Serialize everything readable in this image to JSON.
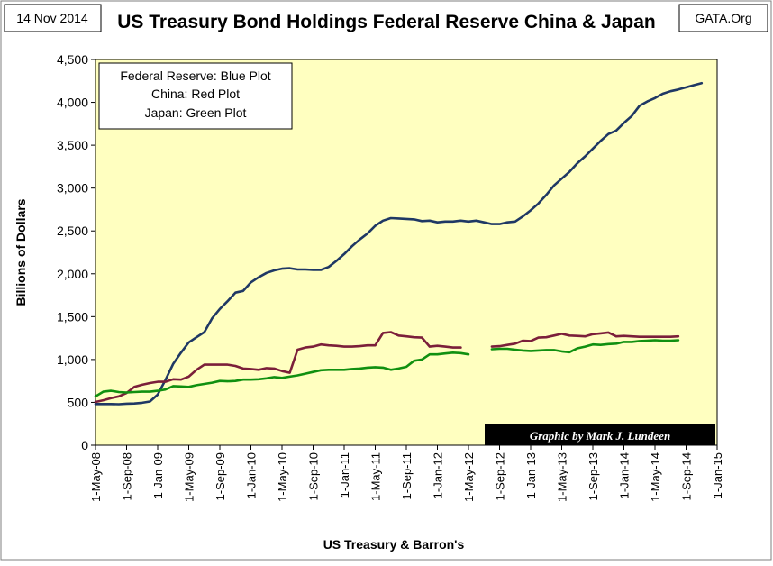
{
  "header": {
    "date_label": "14 Nov 2014",
    "title": "US Treasury Bond Holdings Federal Reserve China & Japan",
    "source_label": "GATA.Org"
  },
  "legend": {
    "lines": [
      "Federal Reserve: Blue Plot",
      "China: Red Plot",
      "Japan: Green Plot"
    ]
  },
  "credit": "Graphic by Mark J. Lundeen",
  "colors": {
    "plot_background": "#ffffc0",
    "federal_reserve": "#1f3864",
    "china": "#7b1f3a",
    "japan": "#109010",
    "credit_background": "#000000",
    "credit_text": "#ffffff"
  },
  "chart_data": {
    "type": "line",
    "title": "US Treasury Bond Holdings Federal Reserve China & Japan",
    "xlabel": "US Treasury & Barron's",
    "ylabel": "Billions of Dollars",
    "ylim": [
      0,
      4500
    ],
    "yticks": [
      0,
      500,
      1000,
      1500,
      2000,
      2500,
      3000,
      3500,
      4000,
      4500
    ],
    "ytick_labels": [
      "0",
      "500",
      "1,000",
      "1,500",
      "2,000",
      "2,500",
      "3,000",
      "3,500",
      "4,000",
      "4,500"
    ],
    "x_start": "2008-05",
    "x_end": "2015-01",
    "xticks": [
      "2008-05",
      "2008-09",
      "2009-01",
      "2009-05",
      "2009-09",
      "2010-01",
      "2010-05",
      "2010-09",
      "2011-01",
      "2011-05",
      "2011-09",
      "2012-01",
      "2012-05",
      "2012-09",
      "2013-01",
      "2013-05",
      "2013-09",
      "2014-01",
      "2014-05",
      "2014-09",
      "2015-01"
    ],
    "xtick_labels": [
      "1-May-08",
      "1-Sep-08",
      "1-Jan-09",
      "1-May-09",
      "1-Sep-09",
      "1-Jan-10",
      "1-May-10",
      "1-Sep-10",
      "1-Jan-11",
      "1-May-11",
      "1-Sep-11",
      "1-Jan-12",
      "1-May-12",
      "1-Sep-12",
      "1-Jan-13",
      "1-May-13",
      "1-Sep-13",
      "1-Jan-14",
      "1-May-14",
      "1-Sep-14",
      "1-Jan-15"
    ],
    "grid": false,
    "legend_position": "top-left",
    "series": [
      {
        "name": "Federal Reserve",
        "color": "#1f3864",
        "points": [
          [
            "2008-05",
            480
          ],
          [
            "2008-06",
            480
          ],
          [
            "2008-07",
            480
          ],
          [
            "2008-08",
            478
          ],
          [
            "2008-09",
            485
          ],
          [
            "2008-10",
            487
          ],
          [
            "2008-11",
            495
          ],
          [
            "2008-12",
            510
          ],
          [
            "2009-01",
            590
          ],
          [
            "2009-02",
            760
          ],
          [
            "2009-03",
            950
          ],
          [
            "2009-04",
            1080
          ],
          [
            "2009-05",
            1200
          ],
          [
            "2009-06",
            1260
          ],
          [
            "2009-07",
            1320
          ],
          [
            "2009-08",
            1480
          ],
          [
            "2009-09",
            1590
          ],
          [
            "2009-10",
            1680
          ],
          [
            "2009-11",
            1780
          ],
          [
            "2009-12",
            1800
          ],
          [
            "2010-01",
            1900
          ],
          [
            "2010-02",
            1960
          ],
          [
            "2010-03",
            2010
          ],
          [
            "2010-04",
            2040
          ],
          [
            "2010-05",
            2060
          ],
          [
            "2010-06",
            2065
          ],
          [
            "2010-07",
            2050
          ],
          [
            "2010-08",
            2050
          ],
          [
            "2010-09",
            2045
          ],
          [
            "2010-10",
            2045
          ],
          [
            "2010-11",
            2080
          ],
          [
            "2010-12",
            2150
          ],
          [
            "2011-01",
            2230
          ],
          [
            "2011-02",
            2320
          ],
          [
            "2011-03",
            2400
          ],
          [
            "2011-04",
            2470
          ],
          [
            "2011-05",
            2560
          ],
          [
            "2011-06",
            2620
          ],
          [
            "2011-07",
            2650
          ],
          [
            "2011-08",
            2645
          ],
          [
            "2011-09",
            2640
          ],
          [
            "2011-10",
            2635
          ],
          [
            "2011-11",
            2615
          ],
          [
            "2011-12",
            2620
          ],
          [
            "2012-01",
            2600
          ],
          [
            "2012-02",
            2610
          ],
          [
            "2012-03",
            2610
          ],
          [
            "2012-04",
            2620
          ],
          [
            "2012-05",
            2610
          ],
          [
            "2012-06",
            2620
          ],
          [
            "2012-07",
            2600
          ],
          [
            "2012-08",
            2580
          ],
          [
            "2012-09",
            2580
          ],
          [
            "2012-10",
            2600
          ],
          [
            "2012-11",
            2610
          ],
          [
            "2012-12",
            2670
          ],
          [
            "2013-01",
            2740
          ],
          [
            "2013-02",
            2820
          ],
          [
            "2013-03",
            2920
          ],
          [
            "2013-04",
            3030
          ],
          [
            "2013-05",
            3110
          ],
          [
            "2013-06",
            3190
          ],
          [
            "2013-07",
            3290
          ],
          [
            "2013-08",
            3370
          ],
          [
            "2013-09",
            3460
          ],
          [
            "2013-10",
            3550
          ],
          [
            "2013-11",
            3630
          ],
          [
            "2013-12",
            3670
          ],
          [
            "2014-01",
            3760
          ],
          [
            "2014-02",
            3840
          ],
          [
            "2014-03",
            3960
          ],
          [
            "2014-04",
            4010
          ],
          [
            "2014-05",
            4050
          ],
          [
            "2014-06",
            4100
          ],
          [
            "2014-07",
            4130
          ],
          [
            "2014-08",
            4150
          ],
          [
            "2014-09",
            4175
          ],
          [
            "2014-10",
            4200
          ],
          [
            "2014-11",
            4225
          ]
        ]
      },
      {
        "name": "China",
        "color": "#7b1f3a",
        "points": [
          [
            "2008-05",
            505
          ],
          [
            "2008-06",
            525
          ],
          [
            "2008-07",
            550
          ],
          [
            "2008-08",
            570
          ],
          [
            "2008-09",
            610
          ],
          [
            "2008-10",
            680
          ],
          [
            "2008-11",
            705
          ],
          [
            "2008-12",
            725
          ],
          [
            "2009-01",
            740
          ],
          [
            "2009-02",
            740
          ],
          [
            "2009-03",
            770
          ],
          [
            "2009-04",
            765
          ],
          [
            "2009-05",
            800
          ],
          [
            "2009-06",
            880
          ],
          [
            "2009-07",
            940
          ],
          [
            "2009-08",
            940
          ],
          [
            "2009-09",
            940
          ],
          [
            "2009-10",
            940
          ],
          [
            "2009-11",
            925
          ],
          [
            "2009-12",
            895
          ],
          [
            "2010-01",
            890
          ],
          [
            "2010-02",
            880
          ],
          [
            "2010-03",
            900
          ],
          [
            "2010-04",
            895
          ],
          [
            "2010-05",
            865
          ],
          [
            "2010-06",
            845
          ],
          [
            "2010-07",
            1115
          ],
          [
            "2010-08",
            1140
          ],
          [
            "2010-09",
            1150
          ],
          [
            "2010-10",
            1175
          ],
          [
            "2010-11",
            1165
          ],
          [
            "2010-12",
            1160
          ],
          [
            "2011-01",
            1150
          ],
          [
            "2011-02",
            1150
          ],
          [
            "2011-03",
            1155
          ],
          [
            "2011-04",
            1165
          ],
          [
            "2011-05",
            1165
          ],
          [
            "2011-06",
            1310
          ],
          [
            "2011-07",
            1320
          ],
          [
            "2011-08",
            1280
          ],
          [
            "2011-09",
            1270
          ],
          [
            "2011-10",
            1260
          ],
          [
            "2011-11",
            1255
          ],
          [
            "2011-12",
            1150
          ],
          [
            "2012-01",
            1160
          ],
          [
            "2012-02",
            1150
          ],
          [
            "2012-03",
            1140
          ],
          [
            "2012-04",
            1140
          ],
          null,
          [
            "2012-08",
            1150
          ],
          [
            "2012-09",
            1155
          ],
          [
            "2012-10",
            1170
          ],
          [
            "2012-11",
            1185
          ],
          [
            "2012-12",
            1220
          ],
          [
            "2013-01",
            1215
          ],
          [
            "2013-02",
            1255
          ],
          [
            "2013-03",
            1260
          ],
          [
            "2013-04",
            1280
          ],
          [
            "2013-05",
            1300
          ],
          [
            "2013-06",
            1280
          ],
          [
            "2013-07",
            1275
          ],
          [
            "2013-08",
            1270
          ],
          [
            "2013-09",
            1295
          ],
          [
            "2013-10",
            1305
          ],
          [
            "2013-11",
            1315
          ],
          [
            "2013-12",
            1270
          ],
          [
            "2014-01",
            1275
          ],
          [
            "2014-02",
            1270
          ],
          [
            "2014-03",
            1265
          ],
          [
            "2014-04",
            1265
          ],
          [
            "2014-05",
            1265
          ],
          [
            "2014-06",
            1265
          ],
          [
            "2014-07",
            1265
          ],
          [
            "2014-08",
            1270
          ]
        ]
      },
      {
        "name": "Japan",
        "color": "#109010",
        "points": [
          [
            "2008-05",
            570
          ],
          [
            "2008-06",
            625
          ],
          [
            "2008-07",
            635
          ],
          [
            "2008-08",
            620
          ],
          [
            "2008-09",
            615
          ],
          [
            "2008-10",
            620
          ],
          [
            "2008-11",
            625
          ],
          [
            "2008-12",
            625
          ],
          [
            "2009-01",
            635
          ],
          [
            "2009-02",
            650
          ],
          [
            "2009-03",
            690
          ],
          [
            "2009-04",
            685
          ],
          [
            "2009-05",
            680
          ],
          [
            "2009-06",
            700
          ],
          [
            "2009-07",
            715
          ],
          [
            "2009-08",
            730
          ],
          [
            "2009-09",
            750
          ],
          [
            "2009-10",
            745
          ],
          [
            "2009-11",
            750
          ],
          [
            "2009-12",
            765
          ],
          [
            "2010-01",
            765
          ],
          [
            "2010-02",
            770
          ],
          [
            "2010-03",
            780
          ],
          [
            "2010-04",
            795
          ],
          [
            "2010-05",
            785
          ],
          [
            "2010-06",
            800
          ],
          [
            "2010-07",
            815
          ],
          [
            "2010-08",
            835
          ],
          [
            "2010-09",
            855
          ],
          [
            "2010-10",
            875
          ],
          [
            "2010-11",
            880
          ],
          [
            "2010-12",
            880
          ],
          [
            "2011-01",
            880
          ],
          [
            "2011-02",
            890
          ],
          [
            "2011-03",
            895
          ],
          [
            "2011-04",
            905
          ],
          [
            "2011-05",
            910
          ],
          [
            "2011-06",
            905
          ],
          [
            "2011-07",
            880
          ],
          [
            "2011-08",
            895
          ],
          [
            "2011-09",
            915
          ],
          [
            "2011-10",
            985
          ],
          [
            "2011-11",
            1000
          ],
          [
            "2011-12",
            1060
          ],
          [
            "2012-01",
            1060
          ],
          [
            "2012-02",
            1070
          ],
          [
            "2012-03",
            1080
          ],
          [
            "2012-04",
            1075
          ],
          [
            "2012-05",
            1060
          ],
          null,
          [
            "2012-08",
            1120
          ],
          [
            "2012-09",
            1125
          ],
          [
            "2012-10",
            1125
          ],
          [
            "2012-11",
            1115
          ],
          [
            "2012-12",
            1105
          ],
          [
            "2013-01",
            1100
          ],
          [
            "2013-02",
            1105
          ],
          [
            "2013-03",
            1110
          ],
          [
            "2013-04",
            1110
          ],
          [
            "2013-05",
            1095
          ],
          [
            "2013-06",
            1085
          ],
          [
            "2013-07",
            1130
          ],
          [
            "2013-08",
            1150
          ],
          [
            "2013-09",
            1175
          ],
          [
            "2013-10",
            1170
          ],
          [
            "2013-11",
            1180
          ],
          [
            "2013-12",
            1185
          ],
          [
            "2014-01",
            1205
          ],
          [
            "2014-02",
            1205
          ],
          [
            "2014-03",
            1215
          ],
          [
            "2014-04",
            1220
          ],
          [
            "2014-05",
            1225
          ],
          [
            "2014-06",
            1220
          ],
          [
            "2014-07",
            1220
          ],
          [
            "2014-08",
            1225
          ]
        ]
      }
    ]
  }
}
